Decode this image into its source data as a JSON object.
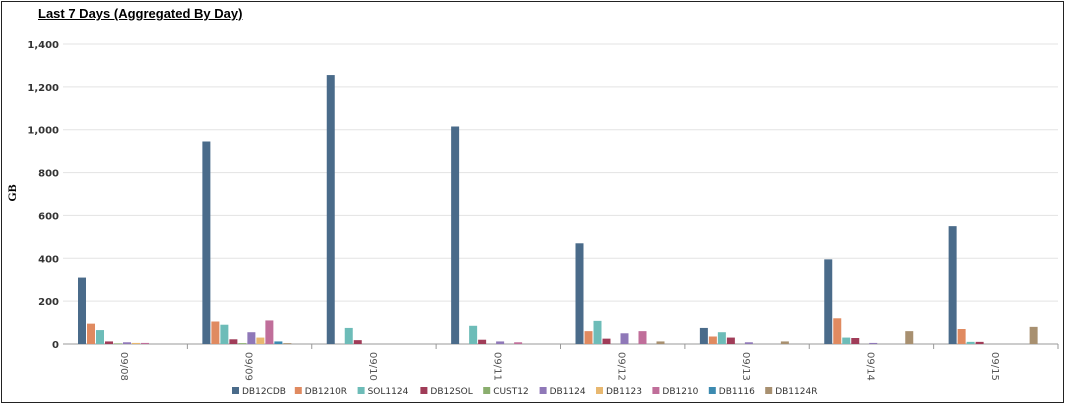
{
  "chart_data": {
    "type": "bar",
    "title": "Last 7 Days (Aggregated By Day)",
    "xlabel": "",
    "ylabel": "GB",
    "ylim": [
      0,
      1400
    ],
    "yticks": [
      "0",
      "200",
      "400",
      "600",
      "800",
      "1,000",
      "1,200",
      "1,400"
    ],
    "ytick_values": [
      0,
      200,
      400,
      600,
      800,
      1000,
      1200,
      1400
    ],
    "grid": true,
    "legend_placement": "bottom",
    "categories": [
      "09/08",
      "09/09",
      "09/10",
      "09/11",
      "09/12",
      "09/13",
      "09/14",
      "09/15"
    ],
    "series": [
      {
        "name": "DB12CDB",
        "color": "#4a6b8a",
        "values": [
          310,
          945,
          1255,
          1015,
          470,
          75,
          395,
          550
        ]
      },
      {
        "name": "DB1210R",
        "color": "#e08a60",
        "values": [
          95,
          105,
          0,
          0,
          60,
          35,
          120,
          70
        ]
      },
      {
        "name": "SOL1124",
        "color": "#6dbcb8",
        "values": [
          65,
          90,
          75,
          85,
          108,
          55,
          30,
          10
        ]
      },
      {
        "name": "DB12SOL",
        "color": "#a03c58",
        "values": [
          12,
          22,
          18,
          20,
          25,
          30,
          28,
          10
        ]
      },
      {
        "name": "CUST12",
        "color": "#8aae6e",
        "values": [
          3,
          4,
          0,
          0,
          0,
          0,
          0,
          0
        ]
      },
      {
        "name": "DB1124",
        "color": "#8f78b8",
        "values": [
          8,
          55,
          0,
          12,
          50,
          8,
          5,
          0
        ]
      },
      {
        "name": "DB1123",
        "color": "#e8b870",
        "values": [
          5,
          30,
          0,
          0,
          0,
          0,
          0,
          0
        ]
      },
      {
        "name": "DB1210",
        "color": "#c06e9a",
        "values": [
          5,
          110,
          0,
          8,
          60,
          0,
          0,
          0
        ]
      },
      {
        "name": "DB1116",
        "color": "#3c8ab0",
        "values": [
          0,
          12,
          0,
          0,
          0,
          0,
          0,
          0
        ]
      },
      {
        "name": "DB1124R",
        "color": "#a89070",
        "values": [
          0,
          4,
          0,
          0,
          12,
          12,
          60,
          80
        ]
      }
    ]
  }
}
